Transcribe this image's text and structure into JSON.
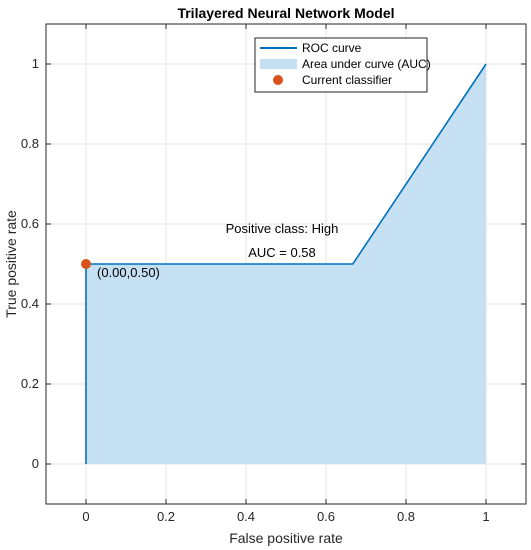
{
  "chart_data": {
    "type": "area",
    "title": "Trilayered Neural Network Model",
    "xlabel": "False positive rate",
    "ylabel": "True positive rate",
    "xlim": [
      -0.1,
      1.1
    ],
    "ylim": [
      -0.1,
      1.1
    ],
    "xticks": [
      0,
      0.2,
      0.4,
      0.6,
      0.8,
      1
    ],
    "yticks": [
      0,
      0.2,
      0.4,
      0.6,
      0.8,
      1
    ],
    "xtick_labels": [
      "0",
      "0.2",
      "0.4",
      "0.6",
      "0.8",
      "1"
    ],
    "ytick_labels": [
      "0",
      "0.2",
      "0.4",
      "0.6",
      "0.8",
      "1"
    ],
    "grid": true,
    "legend_position": "top-right",
    "series": [
      {
        "name": "ROC curve",
        "kind": "line",
        "color": "#0072BD",
        "x": [
          0,
          0,
          0.667,
          1
        ],
        "y": [
          0,
          0.5,
          0.5,
          1
        ]
      },
      {
        "name": "Area under curve (AUC)",
        "kind": "area",
        "color": "#C5DFF3",
        "x": [
          0,
          0,
          0.667,
          1
        ],
        "y": [
          0,
          0.5,
          0.5,
          1
        ]
      },
      {
        "name": "Current classifier",
        "kind": "point",
        "color": "#D95319",
        "x": [
          0
        ],
        "y": [
          0.5
        ]
      }
    ],
    "annotations": {
      "point_label": "(0.00,0.50)",
      "positive_class": "Positive class: High",
      "auc": "AUC = 0.58"
    }
  }
}
